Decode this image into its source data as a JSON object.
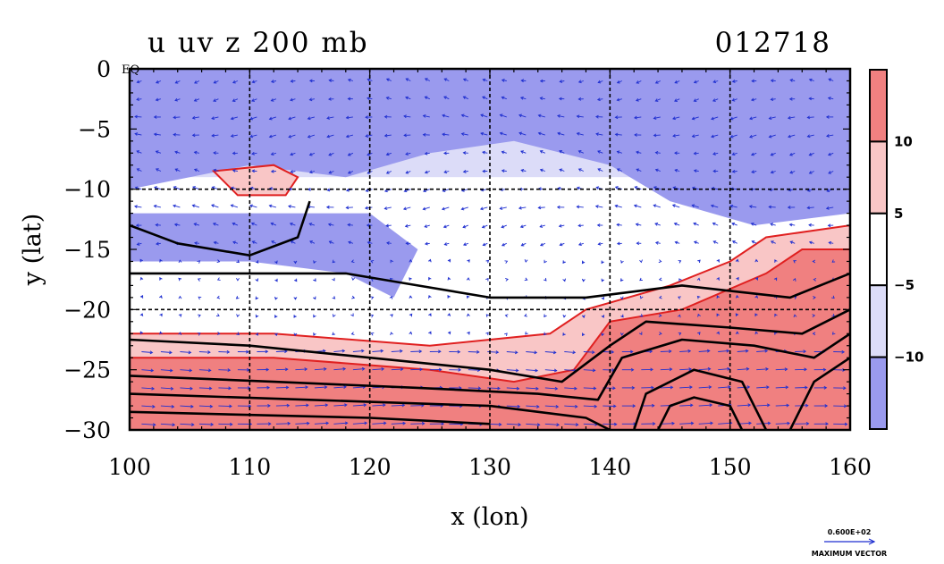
{
  "chart_data": {
    "type": "heatmap",
    "title_left": "u uv z 200 mb",
    "title_right": "012718",
    "xlabel": "x (lon)",
    "ylabel": "y (lat)",
    "xlim": [
      100,
      160
    ],
    "ylim": [
      -30,
      0
    ],
    "x_ticks": [
      "100",
      "110",
      "120",
      "130",
      "140",
      "150",
      "160"
    ],
    "y_ticks": [
      "0",
      "−5",
      "−10",
      "−15",
      "−20",
      "−25",
      "−30"
    ],
    "equator_label": "EQ",
    "grid": true,
    "colorbar": {
      "ticks": [
        "10",
        "5",
        "−5",
        "−10"
      ],
      "bins": [
        {
          "color": "#f08080"
        },
        {
          "color": "#f9c6c6"
        },
        {
          "color": "#ffffff"
        },
        {
          "color": "#dcdcf8"
        },
        {
          "color": "#9a9aee"
        }
      ]
    },
    "vector_reference": {
      "value_label": "0.600E+02",
      "caption": "MAXIMUM VECTOR"
    },
    "field_regions": [
      {
        "level": "strong_easterly",
        "polygon": [
          [
            100,
            0
          ],
          [
            160,
            0
          ],
          [
            160,
            -12
          ],
          [
            152,
            -13
          ],
          [
            145,
            -11
          ],
          [
            140,
            -8
          ],
          [
            132,
            -6
          ],
          [
            125,
            -7
          ],
          [
            118,
            -9
          ],
          [
            110,
            -8
          ],
          [
            100,
            -10
          ]
        ]
      },
      {
        "level": "strong_easterly",
        "polygon": [
          [
            100,
            -12
          ],
          [
            120,
            -12
          ],
          [
            124,
            -15
          ],
          [
            122,
            -19
          ],
          [
            118,
            -17
          ],
          [
            110,
            -16
          ],
          [
            100,
            -16
          ]
        ]
      },
      {
        "level": "weak_westerly",
        "polygon": [
          [
            100,
            -22
          ],
          [
            112,
            -22
          ],
          [
            125,
            -23
          ],
          [
            135,
            -22
          ],
          [
            138,
            -20
          ],
          [
            145,
            -18
          ],
          [
            150,
            -16
          ],
          [
            153,
            -14
          ],
          [
            160,
            -13
          ],
          [
            160,
            -30
          ],
          [
            100,
            -30
          ]
        ]
      },
      {
        "level": "strong_westerly",
        "polygon": [
          [
            100,
            -24
          ],
          [
            112,
            -24
          ],
          [
            125,
            -25
          ],
          [
            132,
            -26
          ],
          [
            137,
            -25
          ],
          [
            140,
            -21
          ],
          [
            146,
            -20
          ],
          [
            153,
            -17
          ],
          [
            156,
            -15
          ],
          [
            160,
            -15
          ],
          [
            160,
            -30
          ],
          [
            100,
            -30
          ]
        ]
      },
      {
        "level": "weak_westerly",
        "polygon": [
          [
            107,
            -8.5
          ],
          [
            112,
            -8
          ],
          [
            114,
            -9
          ],
          [
            113,
            -10.5
          ],
          [
            109,
            -10.5
          ]
        ]
      }
    ],
    "contours": [
      [
        [
          100,
          -13
        ],
        [
          104,
          -14.5
        ],
        [
          110,
          -15.5
        ],
        [
          114,
          -14
        ],
        [
          115,
          -11
        ]
      ],
      [
        [
          100,
          -17
        ],
        [
          110,
          -17
        ],
        [
          118,
          -17
        ],
        [
          124,
          -18
        ],
        [
          130,
          -19
        ],
        [
          138,
          -19
        ],
        [
          146,
          -18
        ],
        [
          155,
          -19
        ],
        [
          160,
          -17
        ]
      ],
      [
        [
          100,
          -22.5
        ],
        [
          110,
          -23
        ],
        [
          120,
          -24
        ],
        [
          130,
          -25
        ],
        [
          136,
          -26
        ],
        [
          140,
          -23
        ],
        [
          143,
          -21
        ],
        [
          150,
          -21.5
        ],
        [
          156,
          -22
        ],
        [
          160,
          -20
        ]
      ],
      [
        [
          100,
          -25.5
        ],
        [
          112,
          -26
        ],
        [
          124,
          -26.5
        ],
        [
          134,
          -27
        ],
        [
          139,
          -27.5
        ],
        [
          141,
          -24
        ],
        [
          146,
          -22.5
        ],
        [
          152,
          -23
        ],
        [
          157,
          -24
        ],
        [
          160,
          -22
        ]
      ],
      [
        [
          100,
          -27
        ],
        [
          115,
          -27.5
        ],
        [
          130,
          -28
        ],
        [
          138,
          -29
        ],
        [
          140,
          -30
        ]
      ],
      [
        [
          100,
          -28.5
        ],
        [
          120,
          -29
        ],
        [
          130,
          -29.5
        ]
      ],
      [
        [
          142,
          -30
        ],
        [
          143,
          -27
        ],
        [
          147,
          -25
        ],
        [
          151,
          -26
        ],
        [
          153,
          -30
        ]
      ],
      [
        [
          144,
          -30
        ],
        [
          145,
          -28
        ],
        [
          147,
          -27.3
        ],
        [
          150,
          -28
        ],
        [
          151,
          -30
        ]
      ],
      [
        [
          155,
          -30
        ],
        [
          157,
          -26
        ],
        [
          160,
          -24
        ]
      ]
    ]
  }
}
